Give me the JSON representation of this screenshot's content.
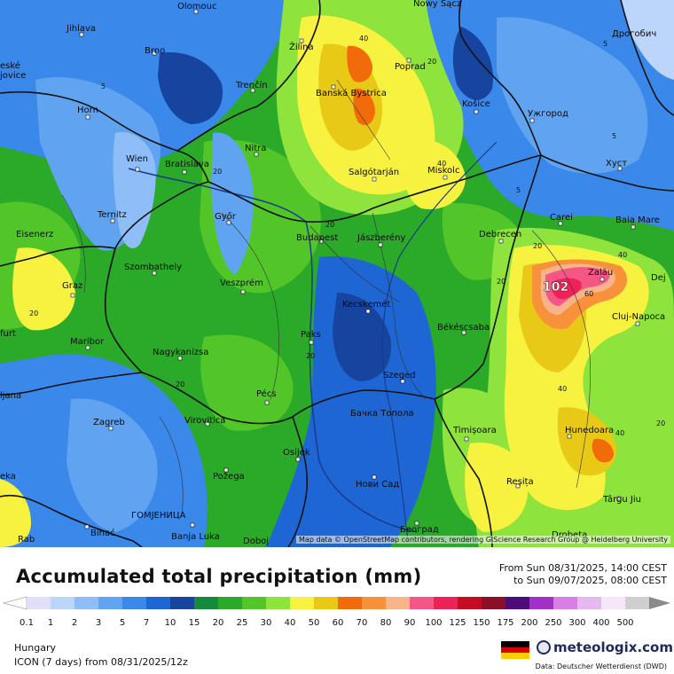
{
  "map": {
    "attribution": "Map data © OpenStreetMap contributors, rendering GIScience Research Group @ Heidelberg University",
    "cities": [
      {
        "name": "Olomouc"
      },
      {
        "name": "Nowy Sącz"
      },
      {
        "name": "Дрогобич"
      },
      {
        "name": "Jihlava"
      },
      {
        "name": "Brno"
      },
      {
        "name": "Žilina"
      },
      {
        "name": "Poprad"
      },
      {
        "name": "Trenčín"
      },
      {
        "name": "Banská Bystrica"
      },
      {
        "name": "Košice"
      },
      {
        "name": "Ужгород"
      },
      {
        "name": "Horn"
      },
      {
        "name": "Nitra"
      },
      {
        "name": "Wien"
      },
      {
        "name": "Bratislava"
      },
      {
        "name": "Salgótarján"
      },
      {
        "name": "Miskolc"
      },
      {
        "name": "Хуст"
      },
      {
        "name": "Ternitz"
      },
      {
        "name": "Győr"
      },
      {
        "name": "Carei"
      },
      {
        "name": "Baia Mare"
      },
      {
        "name": "Eisenerz"
      },
      {
        "name": "Budapest"
      },
      {
        "name": "Jászberény"
      },
      {
        "name": "Debrecen"
      },
      {
        "name": "Zalău"
      },
      {
        "name": "Szombathely"
      },
      {
        "name": "Veszprém"
      },
      {
        "name": "Graz"
      },
      {
        "name": "Kecskemét"
      },
      {
        "name": "Cluj-Napoca"
      },
      {
        "name": "Maribor"
      },
      {
        "name": "Paks"
      },
      {
        "name": "Békéscsaba"
      },
      {
        "name": "Nagykanizsa"
      },
      {
        "name": "Pécs"
      },
      {
        "name": "Szeged"
      },
      {
        "name": "Zagreb"
      },
      {
        "name": "Virovitica"
      },
      {
        "name": "Бачка Топола"
      },
      {
        "name": "Timișoara"
      },
      {
        "name": "Hunedoara"
      },
      {
        "name": "Osijek"
      },
      {
        "name": "Reșița"
      },
      {
        "name": "Požega"
      },
      {
        "name": "Нови Сад"
      },
      {
        "name": "Târgu Jiu"
      },
      {
        "name": "ГОМЈЕНИЦА"
      },
      {
        "name": "Bihać"
      },
      {
        "name": "Banja Luka"
      },
      {
        "name": "Doboj"
      },
      {
        "name": "Београд"
      },
      {
        "name": "Drobeta"
      }
    ],
    "edge_labels": [
      "eské",
      "jovice",
      "Dej",
      "furt",
      "ljana",
      "eka",
      "Rab"
    ],
    "contour_labels": [
      "5",
      "40",
      "20",
      "5",
      "5",
      "40",
      "5",
      "20",
      "20",
      "20",
      "40",
      "60",
      "102",
      "20",
      "20",
      "40",
      "40",
      "20",
      "20",
      "20"
    ],
    "max_value": "102"
  },
  "legend": {
    "title": "Accumulated total precipitation (mm)",
    "period_from": "From Sun 08/31/2025, 14:00 CEST",
    "period_to": "to Sun 09/07/2025, 08:00 CEST",
    "unit": "mm",
    "levels": [
      "0.1",
      "1",
      "2",
      "3",
      "5",
      "7",
      "10",
      "15",
      "20",
      "25",
      "30",
      "40",
      "50",
      "60",
      "70",
      "80",
      "90",
      "100",
      "125",
      "150",
      "175",
      "200",
      "250",
      "300",
      "400",
      "500"
    ],
    "colors": [
      "#dfe0f7",
      "#bcd6fb",
      "#8fbdf7",
      "#60a4f1",
      "#3a88e9",
      "#1f66d5",
      "#17449f",
      "#168a3a",
      "#2ba929",
      "#52c629",
      "#8ee33c",
      "#f6f23f",
      "#e7c916",
      "#f26b0a",
      "#f7923b",
      "#f9b38a",
      "#f45786",
      "#ee2257",
      "#c50c23",
      "#8d0e27",
      "#4c0d7a",
      "#a330c8",
      "#d87ee6",
      "#e7b8ef",
      "#f5e6f9",
      "#cfcfcf"
    ]
  },
  "footer": {
    "region": "Hungary",
    "model": "ICON (7 days) from  08/31/2025/12z",
    "brand": "meteologix.com",
    "source": "Data: Deutscher Wetterdienst (DWD)",
    "flag_colors": [
      "#000000",
      "#dd0000",
      "#ffce00"
    ]
  }
}
